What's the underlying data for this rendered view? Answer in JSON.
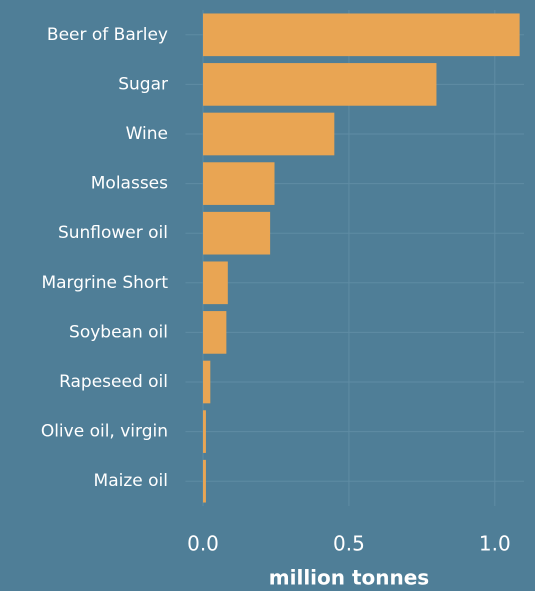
{
  "chart_data": {
    "type": "bar",
    "orientation": "horizontal",
    "x_label": "million tonnes",
    "categories": [
      "Beer of Barley",
      "Sugar",
      "Wine",
      "Molasses",
      "Sunflower oil",
      "Margrine Short",
      "Soybean oil",
      "Rapeseed oil",
      "Olive oil, virgin",
      "Maize oil"
    ],
    "values": [
      1.085,
      0.8,
      0.45,
      0.245,
      0.23,
      0.085,
      0.08,
      0.025,
      0.01,
      0.01
    ],
    "color": "#e9a553",
    "xlim": [
      -0.06,
      1.1
    ],
    "xticks": [
      {
        "value": 0,
        "label": "0.0"
      },
      0.5,
      {
        "value": 1,
        "label": "1.0"
      }
    ],
    "grid": true
  }
}
